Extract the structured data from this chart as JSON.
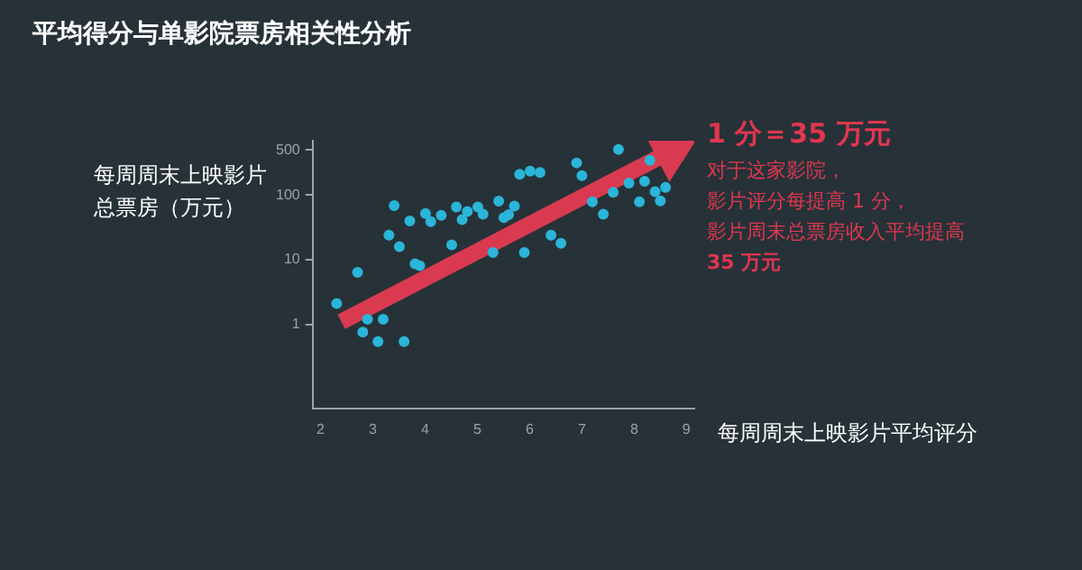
{
  "chart_data": {
    "type": "scatter",
    "title": "平均得分与单影院票房相关性分析",
    "xlabel": "每周周末上映影片平均评分",
    "ylabel": "每周周末上映影片总票房（万元）",
    "annotations": [
      "1 分＝35 万元",
      "对于这家影院，",
      "影片评分每提高 1 分，",
      "影片周末总票房收入平均提高",
      "35 万元"
    ],
    "log": "y",
    "xlim": [
      1.85,
      9.15
    ],
    "xticks": [
      2,
      3,
      4,
      5,
      6,
      7,
      8,
      9
    ],
    "ylim": [
      0.05,
      700
    ],
    "yticks": [
      1,
      10,
      100,
      500
    ],
    "grid": false,
    "legend": false,
    "marker": "circle",
    "series": [
      {
        "color": "#2bb5d8",
        "x": [
          2.31,
          2.71,
          2.81,
          2.9,
          3.1,
          3.2,
          3.31,
          3.41,
          3.51,
          3.6,
          3.71,
          3.81,
          3.9,
          4.01,
          4.11,
          4.31,
          4.51,
          4.6,
          4.71,
          4.81,
          5.01,
          5.11,
          5.3,
          5.41,
          5.51,
          5.6,
          5.71,
          5.81,
          5.9,
          6.01,
          6.2,
          6.41,
          6.6,
          6.9,
          7.0,
          7.2,
          7.41,
          7.6,
          7.7,
          7.9,
          8.1,
          8.2,
          8.3,
          8.4,
          8.5,
          8.6
        ],
        "values": [
          2.1,
          6.4,
          0.76,
          1.2,
          0.54,
          1.2,
          24,
          69,
          16,
          0.54,
          40,
          8.7,
          8.1,
          52,
          39,
          49,
          17,
          66,
          42,
          56,
          66,
          51,
          13,
          81,
          45,
          50,
          68,
          212,
          13,
          236,
          225,
          24,
          18,
          317,
          202,
          79,
          51,
          111,
          510,
          154,
          79,
          164,
          347,
          114,
          82,
          132
        ]
      },
      {
        "type": "line",
        "marker": "triangle",
        "color": "#d93a50",
        "x": [
          2.4,
          8.7
        ],
        "values": [
          1.1,
          480
        ]
      }
    ]
  }
}
